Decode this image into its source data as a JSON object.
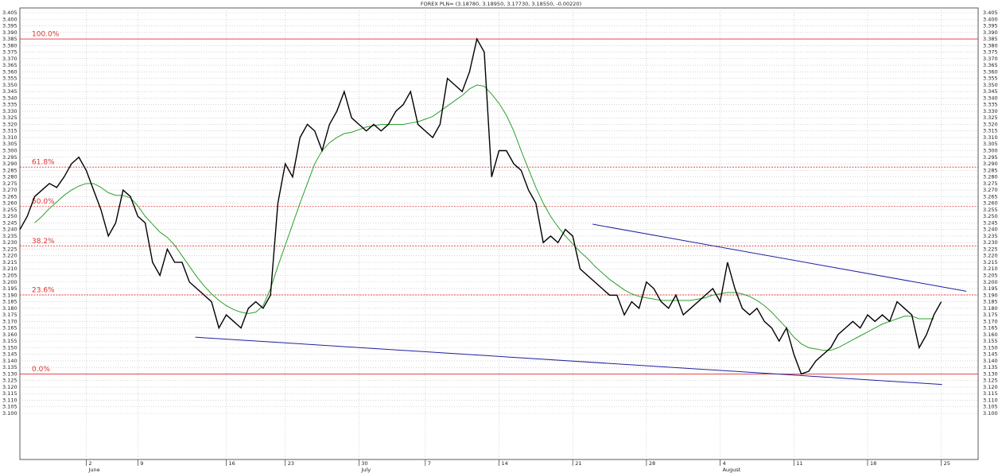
{
  "chart_data": {
    "type": "line",
    "title": "FOREX PLN= (3.18780, 3.18950, 3.17730, 3.18550, -0.00220)",
    "categories": [
      null,
      null,
      null,
      null,
      null,
      null,
      null,
      null,
      null,
      "2",
      null,
      null,
      null,
      null,
      null,
      null,
      "9",
      null,
      null,
      null,
      null,
      null,
      null,
      null,
      null,
      null,
      null,
      null,
      "16",
      null,
      null,
      null,
      null,
      null,
      null,
      null,
      "23",
      null,
      null,
      null,
      null,
      null,
      null,
      null,
      null,
      null,
      "30",
      null,
      null,
      null,
      null,
      null,
      null,
      null,
      null,
      "7",
      null,
      null,
      null,
      null,
      null,
      null,
      null,
      null,
      null,
      "14",
      null,
      null,
      null,
      null,
      null,
      null,
      null,
      null,
      null,
      "21",
      null,
      null,
      null,
      null,
      null,
      null,
      null,
      null,
      null,
      "28",
      null,
      null,
      null,
      null,
      null,
      null,
      null,
      null,
      null,
      "4",
      null,
      null,
      null,
      null,
      null,
      null,
      null,
      null,
      null,
      "11",
      null,
      null,
      null,
      null,
      null,
      null,
      null,
      null,
      null,
      "18",
      null,
      null,
      null,
      null,
      null,
      null,
      null,
      null,
      null,
      "25",
      null,
      null,
      null,
      null,
      null
    ],
    "months": [
      null,
      null,
      null,
      null,
      null,
      null,
      null,
      null,
      null,
      "June",
      null,
      null,
      null,
      null,
      null,
      null,
      null,
      null,
      null,
      null,
      null,
      null,
      null,
      null,
      null,
      null,
      null,
      null,
      null,
      null,
      null,
      null,
      null,
      null,
      null,
      null,
      null,
      null,
      null,
      null,
      null,
      null,
      null,
      null,
      null,
      null,
      "July",
      null,
      null,
      null,
      null,
      null,
      null,
      null,
      null,
      null,
      null,
      null,
      null,
      null,
      null,
      null,
      null,
      null,
      null,
      null,
      null,
      null,
      null,
      null,
      null,
      null,
      null,
      null,
      null,
      null,
      null,
      null,
      null,
      null,
      null,
      null,
      null,
      null,
      null,
      null,
      null,
      null,
      null,
      null,
      null,
      null,
      null,
      null,
      null,
      "August",
      null,
      null,
      null,
      null,
      null,
      null,
      null,
      null,
      null,
      null,
      null,
      null,
      null,
      null,
      null,
      null,
      null,
      null,
      null,
      null,
      null,
      null,
      null,
      null,
      null,
      null,
      null,
      null,
      null,
      null,
      null,
      null,
      null,
      null,
      null
    ],
    "series": [
      {
        "color": "#000000",
        "values": [
          3.24,
          3.25,
          3.265,
          3.27,
          3.275,
          3.272,
          3.28,
          3.29,
          3.295,
          3.285,
          3.27,
          3.255,
          3.235,
          3.245,
          3.27,
          3.265,
          3.25,
          3.245,
          3.215,
          3.205,
          3.225,
          3.215,
          3.215,
          3.2,
          3.195,
          3.19,
          3.185,
          3.165,
          3.175,
          3.17,
          3.165,
          3.18,
          3.185,
          3.18,
          3.19,
          3.26,
          3.29,
          3.28,
          3.31,
          3.32,
          3.315,
          3.3,
          3.32,
          3.33,
          3.345,
          3.325,
          3.32,
          3.315,
          3.32,
          3.315,
          3.32,
          3.33,
          3.335,
          3.345,
          3.32,
          3.315,
          3.31,
          3.32,
          3.355,
          3.35,
          3.345,
          3.36,
          3.385,
          3.375,
          3.28,
          3.3,
          3.3,
          3.29,
          3.285,
          3.27,
          3.26,
          3.23,
          3.235,
          3.23,
          3.24,
          3.235,
          3.21,
          3.205,
          3.2,
          3.195,
          3.19,
          3.19,
          3.175,
          3.185,
          3.18,
          3.2,
          3.195,
          3.185,
          3.18,
          3.19,
          3.175,
          3.18,
          3.185,
          3.19,
          3.195,
          3.185,
          3.215,
          3.195,
          3.18,
          3.175,
          3.18,
          3.17,
          3.165,
          3.155,
          3.165,
          3.145,
          3.13,
          3.132,
          3.14,
          3.145,
          3.15,
          3.16,
          3.165,
          3.17,
          3.165,
          3.175,
          3.17,
          3.175,
          3.17,
          3.185,
          3.18,
          3.175,
          3.15,
          3.16,
          3.175,
          3.185,
          null,
          null,
          null,
          null,
          null
        ]
      },
      {
        "color": "#2ca02c",
        "values": [
          null,
          null,
          3.245,
          3.25,
          3.256,
          3.261,
          3.266,
          3.27,
          3.273,
          3.275,
          3.275,
          3.272,
          3.268,
          3.266,
          3.266,
          3.264,
          3.258,
          3.25,
          3.244,
          3.238,
          3.234,
          3.228,
          3.22,
          3.212,
          3.204,
          3.197,
          3.191,
          3.186,
          3.182,
          3.179,
          3.177,
          3.176,
          3.177,
          3.182,
          3.195,
          3.212,
          3.228,
          3.244,
          3.26,
          3.275,
          3.29,
          3.3,
          3.306,
          3.31,
          3.313,
          3.314,
          3.316,
          3.318,
          3.319,
          3.32,
          3.32,
          3.32,
          3.32,
          3.321,
          3.322,
          3.324,
          3.326,
          3.33,
          3.334,
          3.338,
          3.342,
          3.347,
          3.35,
          3.349,
          3.343,
          3.336,
          3.327,
          3.315,
          3.3,
          3.286,
          3.272,
          3.26,
          3.25,
          3.242,
          3.235,
          3.229,
          3.223,
          3.218,
          3.212,
          3.207,
          3.202,
          3.198,
          3.194,
          3.191,
          3.189,
          3.188,
          3.187,
          3.186,
          3.186,
          3.186,
          3.186,
          3.186,
          3.187,
          3.188,
          3.19,
          3.191,
          3.192,
          3.192,
          3.191,
          3.189,
          3.186,
          3.182,
          3.177,
          3.171,
          3.165,
          3.158,
          3.153,
          3.15,
          3.149,
          3.148,
          3.148,
          3.15,
          3.153,
          3.156,
          3.159,
          3.162,
          3.165,
          3.168,
          3.17,
          3.172,
          3.174,
          3.174,
          3.172,
          3.172,
          3.172,
          null,
          null,
          null,
          null,
          null,
          null
        ]
      }
    ],
    "fib_levels": [
      {
        "label": "100.0%",
        "value": 3.385,
        "line_style": "solid"
      },
      {
        "label": "61.8%",
        "value": 3.2875,
        "line_style": "dotted"
      },
      {
        "label": "50.0%",
        "value": 3.2575,
        "line_style": "dotted"
      },
      {
        "label": "38.2%",
        "value": 3.2275,
        "line_style": "dotted"
      },
      {
        "label": "23.6%",
        "value": 3.1902,
        "line_style": "dotted"
      },
      {
        "label": "0.0%",
        "value": 3.13,
        "line_style": "solid"
      }
    ],
    "fib_color": "#e03030",
    "trendlines": [
      {
        "start": [
          77.7,
          3.244
        ],
        "end": [
          128.4,
          3.193
        ]
      },
      {
        "start": [
          23.8,
          3.158
        ],
        "end": [
          125.1,
          3.122
        ]
      }
    ],
    "trend_color": "#2020a0",
    "grid": true,
    "ylim": [
      3.1,
      3.405
    ],
    "yticks": [
      {
        "value": 3.1,
        "label": "3.100"
      },
      3.105,
      {
        "value": 3.11,
        "label": "3.110"
      },
      3.115,
      {
        "value": 3.12,
        "label": "3.120"
      },
      3.125,
      {
        "value": 3.13,
        "label": "3.130"
      },
      3.135,
      {
        "value": 3.14,
        "label": "3.140"
      },
      3.145,
      {
        "value": 3.15,
        "label": "3.150"
      },
      3.155,
      {
        "value": 3.16,
        "label": "3.160"
      },
      3.165,
      {
        "value": 3.17,
        "label": "3.170"
      },
      3.175,
      {
        "value": 3.18,
        "label": "3.180"
      },
      3.185,
      {
        "value": 3.19,
        "label": "3.190"
      },
      3.195,
      {
        "value": 3.2,
        "label": "3.200"
      },
      3.205,
      {
        "value": 3.21,
        "label": "3.210"
      },
      3.215,
      {
        "value": 3.22,
        "label": "3.220"
      },
      3.225,
      {
        "value": 3.23,
        "label": "3.230"
      },
      3.235,
      {
        "value": 3.24,
        "label": "3.240"
      },
      3.245,
      {
        "value": 3.25,
        "label": "3.250"
      },
      3.255,
      {
        "value": 3.26,
        "label": "3.260"
      },
      3.265,
      {
        "value": 3.27,
        "label": "3.270"
      },
      3.275,
      {
        "value": 3.28,
        "label": "3.280"
      },
      3.285,
      {
        "value": 3.29,
        "label": "3.290"
      },
      3.295,
      {
        "value": 3.3,
        "label": "3.300"
      },
      3.305,
      {
        "value": 3.31,
        "label": "3.310"
      },
      3.315,
      {
        "value": 3.32,
        "label": "3.320"
      },
      3.325,
      {
        "value": 3.33,
        "label": "3.330"
      },
      3.335,
      {
        "value": 3.34,
        "label": "3.340"
      },
      3.345,
      {
        "value": 3.35,
        "label": "3.350"
      },
      3.355,
      {
        "value": 3.36,
        "label": "3.360"
      },
      3.365,
      {
        "value": 3.37,
        "label": "3.370"
      },
      3.375,
      {
        "value": 3.38,
        "label": "3.380"
      },
      3.385,
      {
        "value": 3.39,
        "label": "3.390"
      },
      3.395,
      {
        "value": 3.4,
        "label": "3.400"
      },
      3.405
    ]
  }
}
